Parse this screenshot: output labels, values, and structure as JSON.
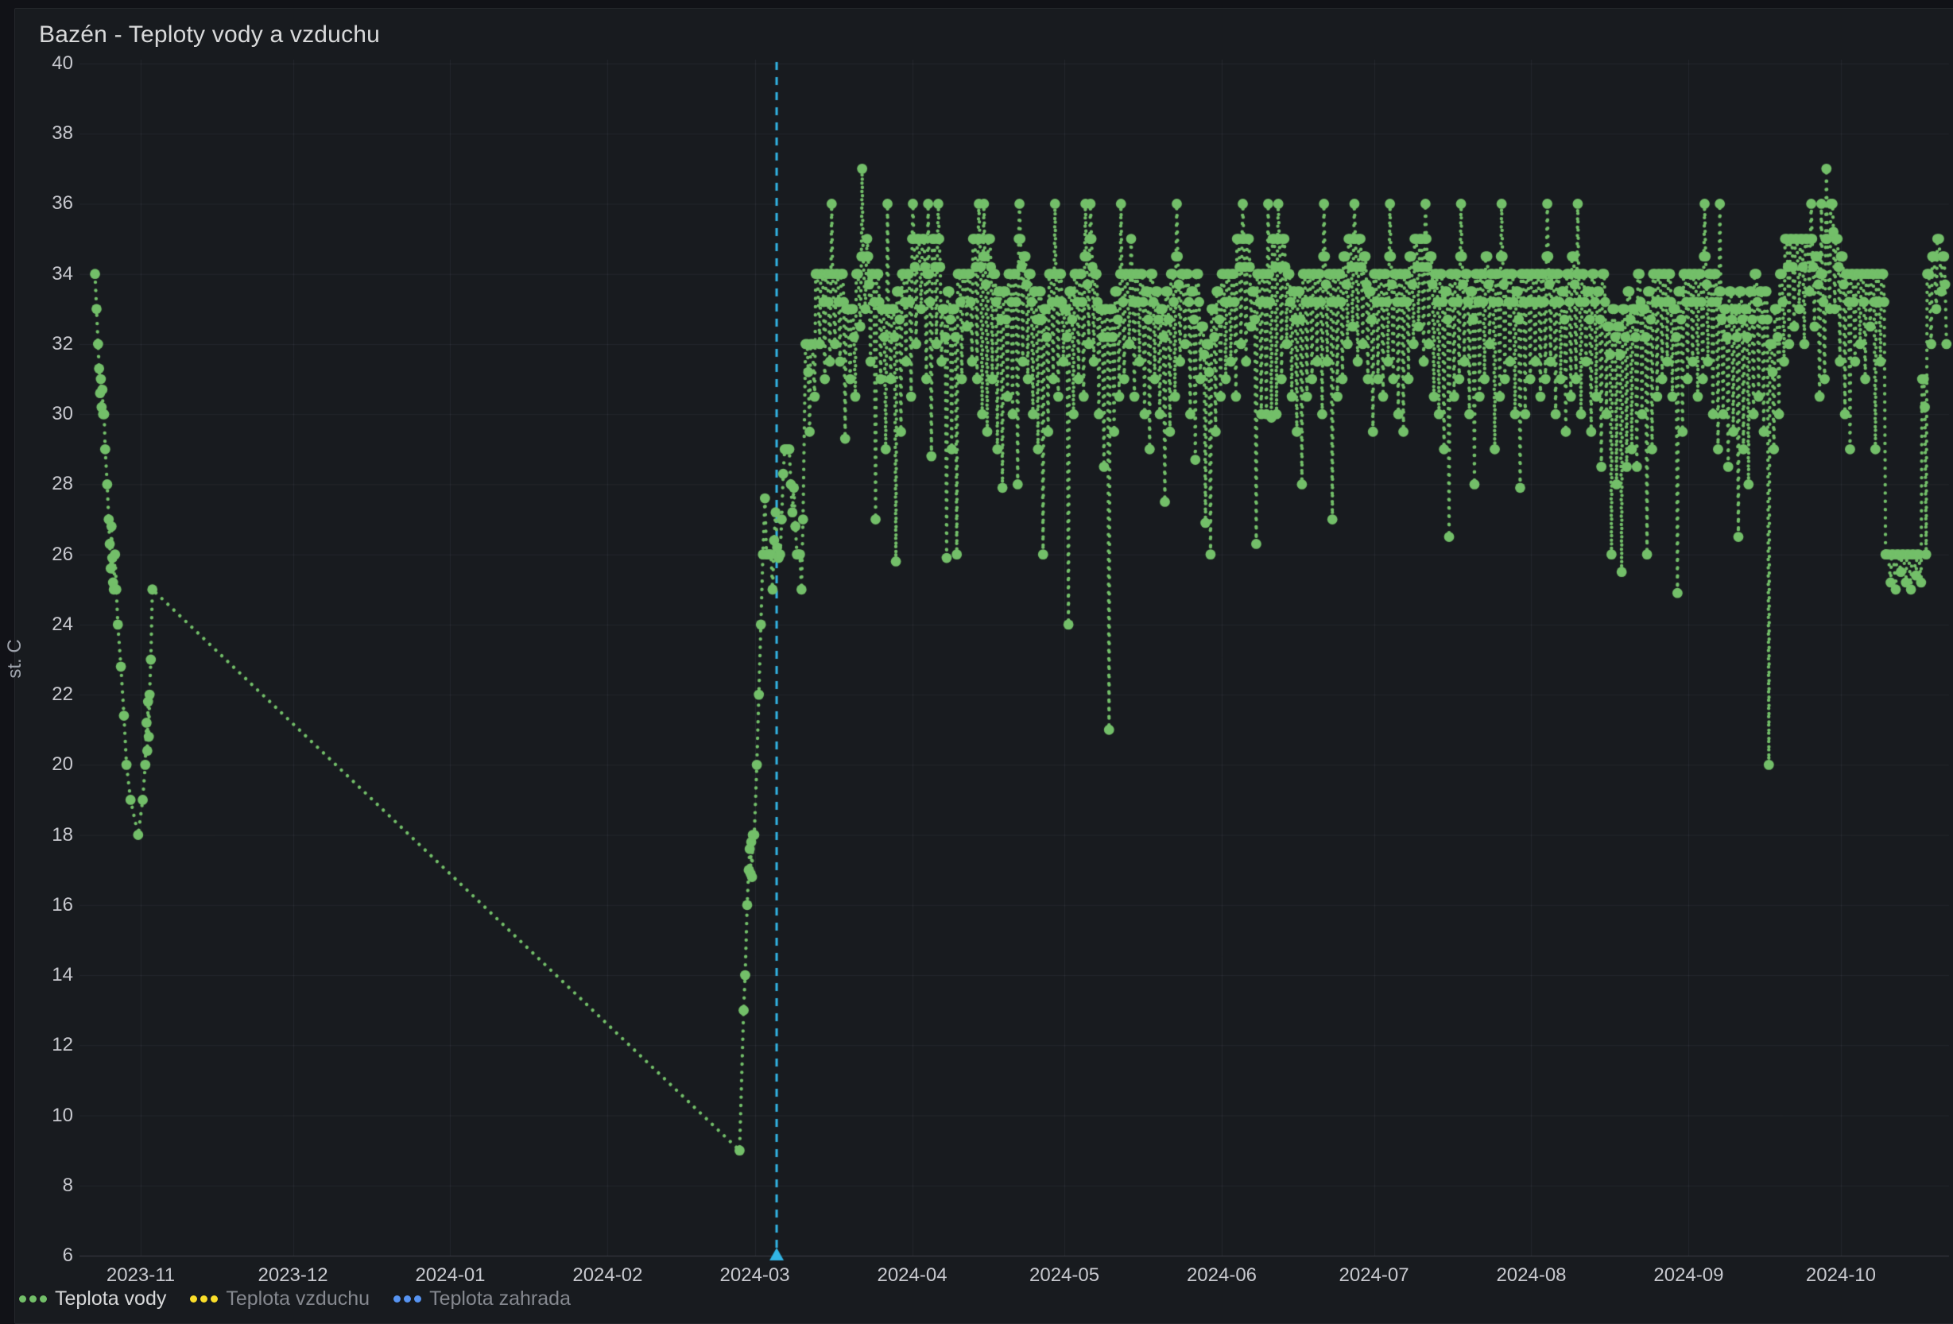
{
  "panel": {
    "title": "Bazén - Teploty vody a vzduchu"
  },
  "y_axis": {
    "label": "st. C",
    "ticks": [
      40,
      38,
      36,
      34,
      32,
      30,
      28,
      26,
      24,
      22,
      20,
      18,
      16,
      14,
      12,
      10,
      8,
      6
    ]
  },
  "x_axis": {
    "ticks": [
      {
        "day": 17,
        "label": "2023-11"
      },
      {
        "day": 47,
        "label": "2023-12"
      },
      {
        "day": 78,
        "label": "2024-01"
      },
      {
        "day": 109,
        "label": "2024-02"
      },
      {
        "day": 138,
        "label": "2024-03"
      },
      {
        "day": 169,
        "label": "2024-04"
      },
      {
        "day": 199,
        "label": "2024-05"
      },
      {
        "day": 230,
        "label": "2024-06"
      },
      {
        "day": 260,
        "label": "2024-07"
      },
      {
        "day": 291,
        "label": "2024-08"
      },
      {
        "day": 322,
        "label": "2024-09"
      },
      {
        "day": 352,
        "label": "2024-10"
      }
    ]
  },
  "legend": [
    {
      "label": "Teplota vody",
      "color": "#73bf69",
      "active": true
    },
    {
      "label": "Teplota vzduchu",
      "color": "#fade2a",
      "active": false
    },
    {
      "label": "Teplota zahrada",
      "color": "#5794f2",
      "active": false
    }
  ],
  "annotation": {
    "day": 142.3,
    "color": "#32b5e5"
  },
  "chart_data": {
    "type": "scatter-line",
    "title": "Bazén - Teploty vody a vzduchu",
    "ylabel": "st. C",
    "series_name": "Teplota vody",
    "series_color": "#73bf69",
    "hidden_series": [
      "Teplota vzduchu",
      "Teplota zahrada"
    ],
    "ylim": [
      6,
      40
    ],
    "x_epoch_day0": "2023-10-15",
    "xlim_days": [
      0.5,
      372.5
    ],
    "grid": true,
    "legend_position": "bottom",
    "points": [
      [
        8,
        34
      ],
      [
        8.3,
        33
      ],
      [
        8.6,
        32
      ],
      [
        8.8,
        31.3
      ],
      [
        9,
        30.6
      ],
      [
        9.15,
        31
      ],
      [
        9.3,
        30.2
      ],
      [
        9.45,
        30.7
      ],
      [
        9.6,
        30
      ],
      [
        9.8,
        30
      ],
      [
        10,
        29
      ],
      [
        10.4,
        28
      ],
      [
        10.7,
        27
      ],
      [
        10.9,
        26.3
      ],
      [
        11.1,
        25.6
      ],
      [
        11.25,
        26.8
      ],
      [
        11.4,
        25.9
      ],
      [
        11.55,
        25.2
      ],
      [
        11.7,
        25
      ],
      [
        11.95,
        26
      ],
      [
        12.2,
        25
      ],
      [
        12.5,
        24
      ],
      [
        13.1,
        22.8
      ],
      [
        13.7,
        21.4
      ],
      [
        14.2,
        20
      ],
      [
        15,
        19
      ],
      [
        16.5,
        18
      ],
      [
        17.4,
        19
      ],
      [
        17.9,
        20
      ],
      [
        18.15,
        21.2
      ],
      [
        18.3,
        20.4
      ],
      [
        18.45,
        21.8
      ],
      [
        18.6,
        20.8
      ],
      [
        18.75,
        22
      ],
      [
        19,
        23
      ],
      [
        19.3,
        25
      ],
      [
        135,
        9
      ],
      [
        135.8,
        13
      ],
      [
        136.1,
        14
      ],
      [
        136.5,
        16
      ],
      [
        136.8,
        17
      ],
      [
        137,
        17.6
      ],
      [
        137.15,
        16.9
      ],
      [
        137.3,
        17.8
      ],
      [
        137.45,
        16.8
      ],
      [
        137.6,
        18
      ],
      [
        137.9,
        18
      ],
      [
        138.4,
        20
      ],
      [
        138.8,
        22
      ],
      [
        139.2,
        24
      ],
      [
        139.6,
        26
      ],
      [
        140,
        27.6
      ],
      [
        140.3,
        26
      ],
      [
        140.6,
        26
      ],
      [
        140.9,
        26
      ],
      [
        141.2,
        26
      ],
      [
        141.5,
        25
      ],
      [
        141.8,
        26.4
      ],
      [
        142.1,
        27.2
      ],
      [
        142.4,
        26.2
      ],
      [
        142.7,
        25.9
      ],
      [
        143,
        26
      ],
      [
        143.3,
        27
      ],
      [
        143.6,
        28.3
      ],
      [
        143.9,
        29
      ],
      [
        144.2,
        29
      ],
      [
        144.5,
        29
      ],
      [
        144.8,
        29
      ],
      [
        145.1,
        28
      ],
      [
        145.4,
        27.2
      ],
      [
        145.7,
        27.9
      ],
      [
        146,
        26.8
      ],
      [
        146.3,
        26
      ],
      [
        146.6,
        26
      ],
      [
        146.9,
        26
      ],
      [
        147.2,
        25
      ],
      [
        147.5,
        27
      ]
    ],
    "days": [
      [
        148,
        32,
        29.5
      ],
      [
        149,
        32,
        30.5
      ],
      [
        150,
        34,
        32
      ],
      [
        151,
        34,
        31
      ],
      [
        152,
        34,
        31.5
      ],
      [
        153,
        34,
        32,
        36
      ],
      [
        154,
        34,
        31.5
      ],
      [
        155,
        34,
        29.3
      ],
      [
        156,
        33,
        31
      ],
      [
        157,
        33,
        30.5
      ],
      [
        158,
        34,
        32.5
      ],
      [
        159,
        34.5,
        33,
        37
      ],
      [
        160,
        34.5,
        31.5,
        35
      ],
      [
        161,
        34,
        27
      ],
      [
        162,
        34,
        31
      ],
      [
        163,
        33,
        29
      ],
      [
        164,
        33,
        31,
        36
      ],
      [
        165,
        33,
        25.8
      ],
      [
        166,
        33.5,
        29.5
      ],
      [
        167,
        34,
        31.5
      ],
      [
        168,
        34,
        30.5
      ],
      [
        169,
        35,
        32,
        36
      ],
      [
        170,
        35,
        33
      ],
      [
        171,
        35,
        31
      ],
      [
        172,
        34,
        28.8,
        36
      ],
      [
        173,
        35,
        32
      ],
      [
        174,
        35,
        31.5,
        36
      ],
      [
        175,
        33,
        25.9
      ],
      [
        176,
        33.5,
        29
      ],
      [
        177,
        33,
        26
      ],
      [
        178,
        34,
        31
      ],
      [
        179,
        34,
        32.5
      ],
      [
        180,
        34,
        31.5
      ],
      [
        181,
        35,
        31
      ],
      [
        182,
        35,
        30,
        36
      ],
      [
        183,
        34.5,
        29.5,
        36
      ],
      [
        184,
        35,
        31
      ],
      [
        185,
        34,
        29
      ],
      [
        186,
        33.5,
        27.9
      ],
      [
        187,
        33.5,
        30.5
      ],
      [
        188,
        34,
        30
      ],
      [
        189,
        34,
        28
      ],
      [
        190,
        35,
        31.5,
        36
      ],
      [
        191,
        34.5,
        31
      ],
      [
        192,
        34,
        30
      ],
      [
        193,
        33.5,
        29
      ],
      [
        194,
        33.5,
        26
      ],
      [
        195,
        33,
        29.5
      ],
      [
        196,
        34,
        31
      ],
      [
        197,
        34,
        30.5,
        36
      ],
      [
        198,
        34,
        31.5
      ],
      [
        199,
        33,
        24
      ],
      [
        200,
        33.5,
        30
      ],
      [
        201,
        34,
        31
      ],
      [
        202,
        34,
        30.5
      ],
      [
        203,
        34.5,
        32,
        36
      ],
      [
        204,
        35,
        31.5,
        36
      ],
      [
        205,
        34,
        30
      ],
      [
        206,
        33,
        28.5
      ],
      [
        207,
        33,
        21
      ],
      [
        208,
        33,
        29.5
      ],
      [
        209,
        33.5,
        30.5
      ],
      [
        210,
        34,
        31,
        36
      ],
      [
        211,
        34,
        32
      ],
      [
        212,
        34,
        30.5,
        35
      ],
      [
        213,
        34,
        31.5
      ],
      [
        214,
        34,
        30
      ],
      [
        215,
        33.5,
        29
      ],
      [
        216,
        34,
        31
      ],
      [
        217,
        33.5,
        30
      ],
      [
        218,
        33,
        27.5
      ],
      [
        219,
        33.5,
        29.5
      ],
      [
        220,
        34,
        30.5
      ],
      [
        221,
        34.5,
        31.5,
        36
      ],
      [
        222,
        34,
        32
      ],
      [
        223,
        34,
        30
      ],
      [
        224,
        33.5,
        28.7
      ],
      [
        225,
        34,
        31
      ],
      [
        226,
        32.5,
        26.9
      ],
      [
        227,
        32,
        26
      ],
      [
        228,
        33,
        29.5
      ],
      [
        229,
        33.5,
        30.5
      ],
      [
        230,
        34,
        31
      ],
      [
        231,
        34,
        31.5
      ],
      [
        232,
        34,
        30.5
      ],
      [
        233,
        35,
        32
      ],
      [
        234,
        35,
        31.5,
        36
      ],
      [
        235,
        35,
        32.5
      ],
      [
        236,
        33.5,
        26.3
      ],
      [
        237,
        34,
        30
      ],
      [
        238,
        34,
        30
      ],
      [
        239,
        34,
        29.9,
        36
      ],
      [
        240,
        35,
        30
      ],
      [
        241,
        35,
        31,
        36
      ],
      [
        242,
        35,
        32
      ],
      [
        243,
        34,
        30.5
      ],
      [
        244,
        33.5,
        29.5
      ],
      [
        245,
        33.5,
        28
      ],
      [
        246,
        34,
        30.5
      ],
      [
        247,
        34,
        31
      ],
      [
        248,
        34,
        31.5
      ],
      [
        249,
        34,
        30
      ],
      [
        250,
        34.5,
        31.5,
        36
      ],
      [
        251,
        34,
        27
      ],
      [
        252,
        34,
        30.5
      ],
      [
        253,
        34,
        31
      ],
      [
        254,
        34.5,
        32
      ],
      [
        255,
        35,
        32.5
      ],
      [
        256,
        35,
        31.5,
        36
      ],
      [
        257,
        35,
        32
      ],
      [
        258,
        34.5,
        31
      ],
      [
        259,
        33.5,
        29.5
      ],
      [
        260,
        34,
        31
      ],
      [
        261,
        34,
        30.5
      ],
      [
        262,
        34,
        31.5
      ],
      [
        263,
        34.5,
        31,
        36
      ],
      [
        264,
        34,
        30
      ],
      [
        265,
        34,
        29.5
      ],
      [
        266,
        34,
        31
      ],
      [
        267,
        34.5,
        32
      ],
      [
        268,
        35,
        32.5
      ],
      [
        269,
        35,
        31.5
      ],
      [
        270,
        35,
        32,
        36
      ],
      [
        271,
        34.5,
        30.5
      ],
      [
        272,
        34,
        30
      ],
      [
        273,
        34,
        29
      ],
      [
        274,
        33.5,
        26.5
      ],
      [
        275,
        34,
        30.5
      ],
      [
        276,
        34,
        31
      ],
      [
        277,
        34.5,
        31.5,
        36
      ],
      [
        278,
        34,
        30
      ],
      [
        279,
        33.5,
        28
      ],
      [
        280,
        34,
        30.5
      ],
      [
        281,
        34,
        31
      ],
      [
        282,
        34.5,
        32
      ],
      [
        283,
        34,
        29
      ],
      [
        284,
        34,
        30.5
      ],
      [
        285,
        34.5,
        31,
        36
      ],
      [
        286,
        34,
        31.5
      ],
      [
        287,
        34,
        30
      ],
      [
        288,
        33.5,
        27.9
      ],
      [
        289,
        34,
        30
      ],
      [
        290,
        34,
        31
      ],
      [
        291,
        34,
        31.5
      ],
      [
        292,
        34,
        30.5
      ],
      [
        293,
        34,
        31
      ],
      [
        294,
        34.5,
        31.5,
        36
      ],
      [
        295,
        34,
        30
      ],
      [
        296,
        34,
        31
      ],
      [
        297,
        33.5,
        29.5
      ],
      [
        298,
        34,
        30.5
      ],
      [
        299,
        34.5,
        31
      ],
      [
        300,
        34,
        30,
        36
      ],
      [
        301,
        34,
        31.5
      ],
      [
        302,
        33.5,
        29.5
      ],
      [
        303,
        34,
        30.5
      ],
      [
        304,
        33.5,
        28.5
      ],
      [
        305,
        34,
        30
      ],
      [
        306,
        32.5,
        26
      ],
      [
        307,
        33,
        28
      ],
      [
        308,
        32.5,
        25.5
      ],
      [
        309,
        33,
        28.5
      ],
      [
        310,
        33.5,
        29
      ],
      [
        311,
        33,
        28.5
      ],
      [
        312,
        34,
        30
      ],
      [
        313,
        33,
        26
      ],
      [
        314,
        33.5,
        29
      ],
      [
        315,
        34,
        30.5
      ],
      [
        316,
        34,
        31
      ],
      [
        317,
        34,
        31.5
      ],
      [
        318,
        34,
        30.5
      ],
      [
        319,
        33,
        24.9
      ],
      [
        320,
        33.5,
        29.5
      ],
      [
        321,
        34,
        31
      ],
      [
        322,
        34,
        31.5
      ],
      [
        323,
        34,
        30.5
      ],
      [
        324,
        34,
        31
      ],
      [
        325,
        34.5,
        31.5,
        36
      ],
      [
        326,
        34,
        30
      ],
      [
        327,
        34,
        29
      ],
      [
        328,
        33.5,
        30,
        36
      ],
      [
        329,
        33,
        28.5
      ],
      [
        330,
        33.5,
        29.5
      ],
      [
        331,
        33,
        26.5
      ],
      [
        332,
        33.5,
        29
      ],
      [
        333,
        33,
        28
      ],
      [
        334,
        33.5,
        30
      ],
      [
        335,
        34,
        30.5
      ],
      [
        336,
        33.5,
        29.5
      ],
      [
        337,
        33.5,
        20
      ],
      [
        338,
        32,
        29
      ],
      [
        339,
        33,
        30
      ],
      [
        340,
        34,
        31.5
      ],
      [
        341,
        35,
        32
      ],
      [
        342,
        35,
        32.5
      ],
      [
        343,
        35,
        33
      ],
      [
        344,
        35,
        32
      ],
      [
        345,
        35,
        33.5
      ],
      [
        346,
        35,
        32.5,
        36
      ],
      [
        347,
        34.5,
        30.5
      ],
      [
        348,
        34,
        31,
        36
      ],
      [
        349,
        35,
        33,
        37
      ],
      [
        350,
        36,
        33
      ],
      [
        351,
        35,
        31.5
      ],
      [
        352,
        34.5,
        30
      ],
      [
        353,
        34,
        29
      ],
      [
        354,
        34,
        31.5
      ],
      [
        355,
        34,
        32
      ],
      [
        356,
        34,
        31
      ],
      [
        357,
        34,
        32.5
      ],
      [
        358,
        34,
        29
      ],
      [
        359,
        34,
        31.5
      ],
      [
        360,
        34,
        26
      ],
      [
        361,
        26,
        25.2
      ],
      [
        362,
        26,
        25
      ],
      [
        363,
        26,
        25.5
      ],
      [
        364,
        26,
        25.2
      ],
      [
        365,
        26,
        25
      ],
      [
        366,
        26,
        25.4
      ],
      [
        367,
        26,
        25.2
      ],
      [
        368,
        31,
        26
      ],
      [
        369,
        34,
        32
      ],
      [
        370,
        34.5,
        33
      ],
      [
        371,
        35,
        33.5
      ],
      [
        372,
        34.5,
        32
      ]
    ]
  }
}
